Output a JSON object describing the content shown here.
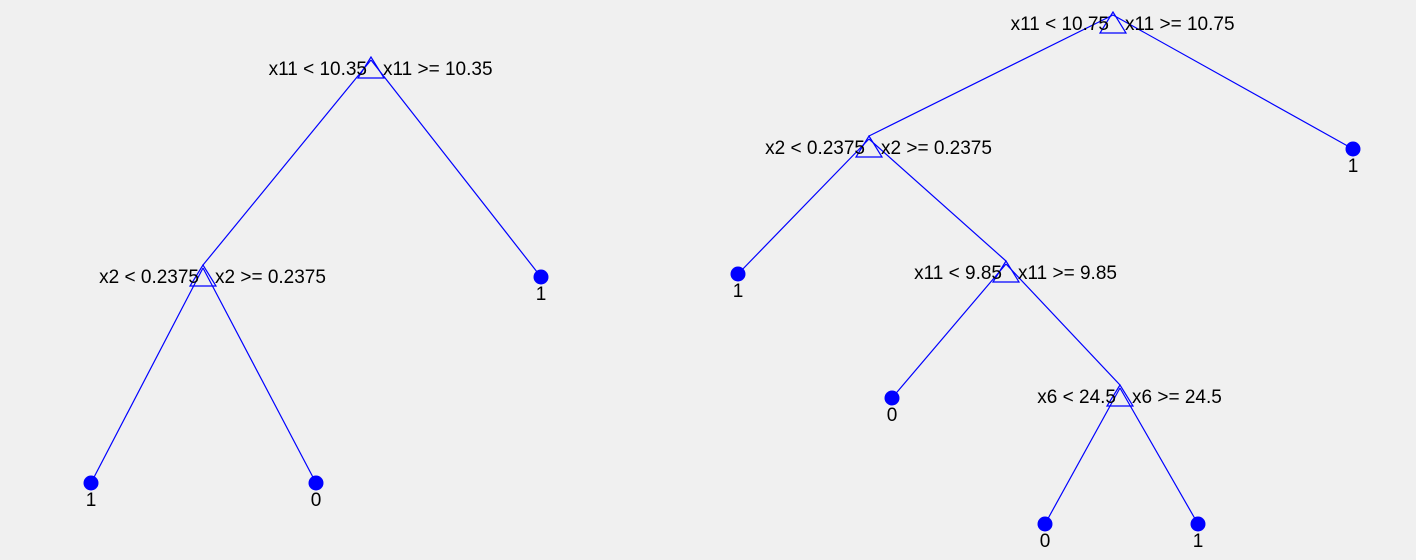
{
  "colors": {
    "background": "#f0f0f0",
    "edge": "#0000ff",
    "node": "#0000ff",
    "text": "#000000"
  },
  "trees": [
    {
      "name": "left-tree",
      "nodes": [
        {
          "id": "L-root",
          "type": "split",
          "left_label": "x11 < 10.35",
          "right_label": "x11 >= 10.35"
        },
        {
          "id": "L-n1",
          "type": "split",
          "left_label": "x2 < 0.2375",
          "right_label": "x2 >= 0.2375"
        },
        {
          "id": "L-leaf-r",
          "type": "leaf",
          "label": "1"
        },
        {
          "id": "L-leaf-ll",
          "type": "leaf",
          "label": "1"
        },
        {
          "id": "L-leaf-lr",
          "type": "leaf",
          "label": "0"
        }
      ],
      "edges": [
        [
          "L-root",
          "L-n1"
        ],
        [
          "L-root",
          "L-leaf-r"
        ],
        [
          "L-n1",
          "L-leaf-ll"
        ],
        [
          "L-n1",
          "L-leaf-lr"
        ]
      ]
    },
    {
      "name": "right-tree",
      "nodes": [
        {
          "id": "R-root",
          "type": "split",
          "left_label": "x11 < 10.75",
          "right_label": "x11 >= 10.75"
        },
        {
          "id": "R-n1",
          "type": "split",
          "left_label": "x2 < 0.2375",
          "right_label": "x2 >= 0.2375"
        },
        {
          "id": "R-leaf-r",
          "type": "leaf",
          "label": "1"
        },
        {
          "id": "R-leaf-a",
          "type": "leaf",
          "label": "1"
        },
        {
          "id": "R-n2",
          "type": "split",
          "left_label": "x11 < 9.85",
          "right_label": "x11 >= 9.85"
        },
        {
          "id": "R-leaf-b",
          "type": "leaf",
          "label": "0"
        },
        {
          "id": "R-n3",
          "type": "split",
          "left_label": "x6 < 24.5",
          "right_label": "x6 >= 24.5"
        },
        {
          "id": "R-leaf-c",
          "type": "leaf",
          "label": "0"
        },
        {
          "id": "R-leaf-d",
          "type": "leaf",
          "label": "1"
        }
      ],
      "edges": [
        [
          "R-root",
          "R-n1"
        ],
        [
          "R-root",
          "R-leaf-r"
        ],
        [
          "R-n1",
          "R-leaf-a"
        ],
        [
          "R-n1",
          "R-n2"
        ],
        [
          "R-n2",
          "R-leaf-b"
        ],
        [
          "R-n2",
          "R-n3"
        ],
        [
          "R-n3",
          "R-leaf-c"
        ],
        [
          "R-n3",
          "R-leaf-d"
        ]
      ]
    }
  ]
}
